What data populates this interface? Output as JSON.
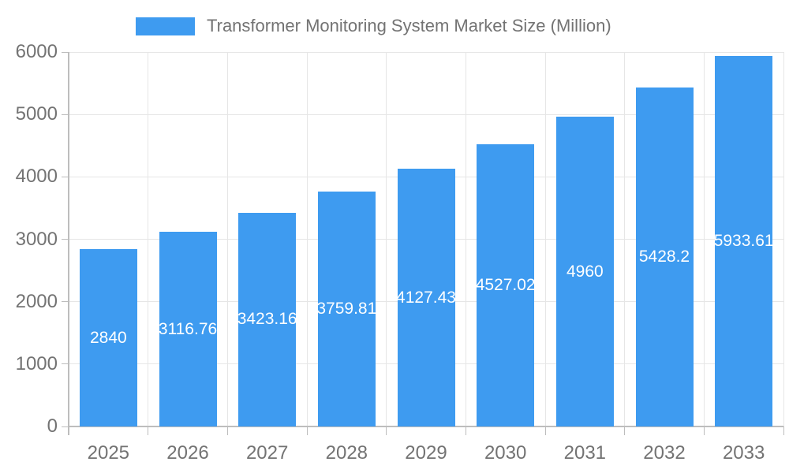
{
  "legend": {
    "label": "Transformer Monitoring System Market Size (Million)"
  },
  "chart_data": {
    "type": "bar",
    "title": "Transformer Monitoring System Market Size (Million)",
    "categories": [
      "2025",
      "2026",
      "2027",
      "2028",
      "2029",
      "2030",
      "2031",
      "2032",
      "2033"
    ],
    "values": [
      2840,
      3116.76,
      3423.16,
      3759.81,
      4127.43,
      4527.02,
      4960,
      5428.2,
      5933.61
    ],
    "value_labels": [
      "2840",
      "3116.76",
      "3423.16",
      "3759.81",
      "4127.43",
      "4527.02",
      "4960",
      "5428.2",
      "5933.61"
    ],
    "xlabel": "",
    "ylabel": "",
    "ylim": [
      0,
      6000
    ],
    "yticks": [
      0,
      1000,
      2000,
      3000,
      4000,
      5000,
      6000
    ],
    "ytick_labels": [
      "0",
      "1000",
      "2000",
      "3000",
      "4000",
      "5000",
      "6000"
    ],
    "grid": true,
    "legend_position": "top",
    "bar_color": "#3E9BF0",
    "value_label_color": "#ffffff",
    "axis_text_color": "#737373",
    "grid_color": "#e6e6e6",
    "axis_line_color": "#bdbdbd"
  }
}
